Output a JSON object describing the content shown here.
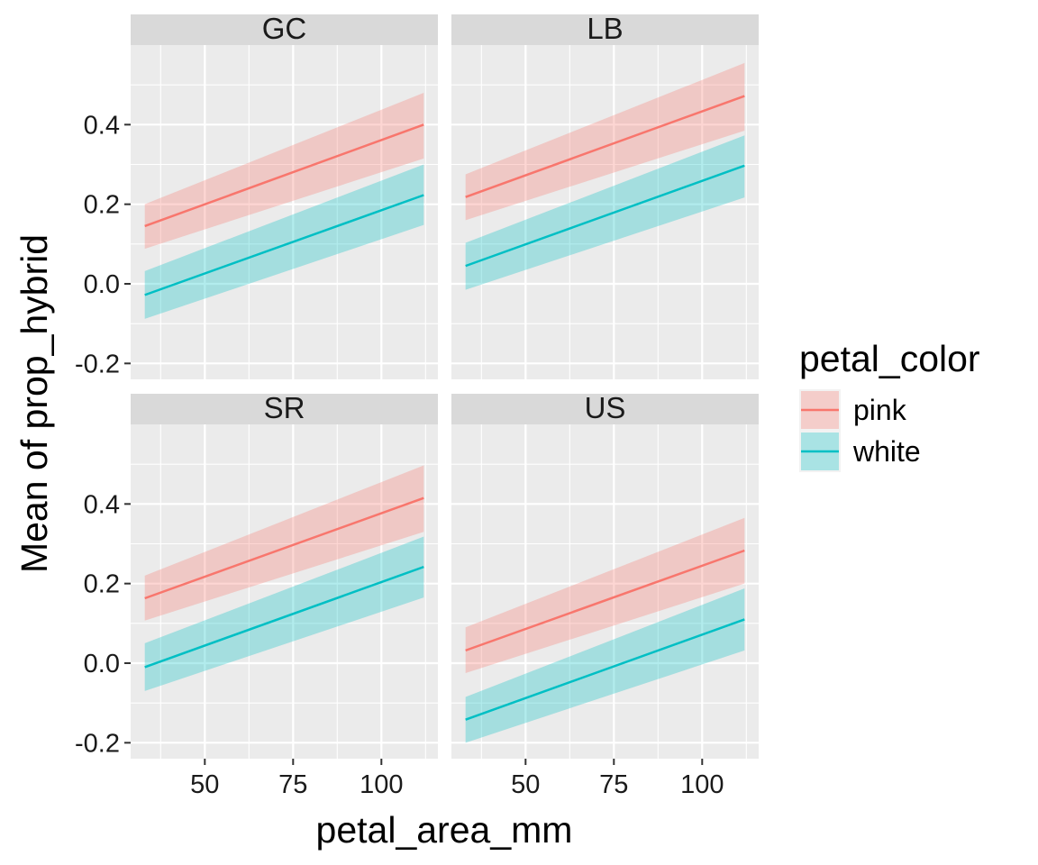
{
  "chart_data": {
    "type": "line",
    "xlabel": "petal_area_mm",
    "ylabel": "Mean of prop_hybrid",
    "xlim": [
      29,
      116
    ],
    "ylim": [
      -0.24,
      0.6
    ],
    "x_ticks": [
      50,
      75,
      100
    ],
    "y_ticks": [
      -0.2,
      0.0,
      0.2,
      0.4
    ],
    "y_tick_labels": [
      "-0.2",
      "0.0",
      "0.2",
      "0.4"
    ],
    "grid": true,
    "legend": {
      "title": "petal_color",
      "position": "right",
      "entries": [
        {
          "label": "pink",
          "color": "#F8766D"
        },
        {
          "label": "white",
          "color": "#00BFC4"
        }
      ]
    },
    "facets": [
      {
        "label": "GC",
        "series": [
          {
            "name": "pink",
            "x": [
              33,
              112
            ],
            "y": [
              0.145,
              0.4
            ],
            "lower": [
              0.088,
              0.315
            ],
            "upper": [
              0.2,
              0.48
            ]
          },
          {
            "name": "white",
            "x": [
              33,
              112
            ],
            "y": [
              -0.028,
              0.223
            ],
            "lower": [
              -0.088,
              0.148
            ],
            "upper": [
              0.032,
              0.3
            ]
          }
        ]
      },
      {
        "label": "LB",
        "series": [
          {
            "name": "pink",
            "x": [
              33,
              112
            ],
            "y": [
              0.218,
              0.472
            ],
            "lower": [
              0.16,
              0.385
            ],
            "upper": [
              0.275,
              0.555
            ]
          },
          {
            "name": "white",
            "x": [
              33,
              112
            ],
            "y": [
              0.045,
              0.297
            ],
            "lower": [
              -0.015,
              0.217
            ],
            "upper": [
              0.103,
              0.373
            ]
          }
        ]
      },
      {
        "label": "SR",
        "series": [
          {
            "name": "pink",
            "x": [
              33,
              112
            ],
            "y": [
              0.163,
              0.415
            ],
            "lower": [
              0.107,
              0.33
            ],
            "upper": [
              0.22,
              0.497
            ]
          },
          {
            "name": "white",
            "x": [
              33,
              112
            ],
            "y": [
              -0.01,
              0.242
            ],
            "lower": [
              -0.07,
              0.165
            ],
            "upper": [
              0.05,
              0.318
            ]
          }
        ]
      },
      {
        "label": "US",
        "series": [
          {
            "name": "pink",
            "x": [
              33,
              112
            ],
            "y": [
              0.032,
              0.283
            ],
            "lower": [
              -0.025,
              0.2
            ],
            "upper": [
              0.09,
              0.365
            ]
          },
          {
            "name": "white",
            "x": [
              33,
              112
            ],
            "y": [
              -0.142,
              0.11
            ],
            "lower": [
              -0.2,
              0.032
            ],
            "upper": [
              -0.085,
              0.188
            ]
          }
        ]
      }
    ]
  }
}
